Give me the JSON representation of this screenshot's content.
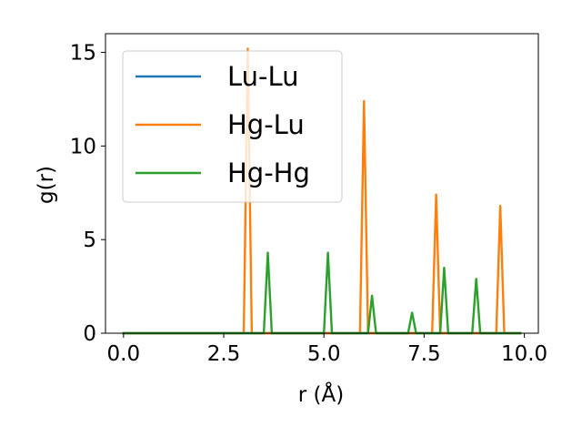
{
  "chart_data": {
    "type": "line",
    "xlabel": "r (Å)",
    "ylabel": "g(r)",
    "xlim": [
      -0.45,
      10.35
    ],
    "ylim": [
      0,
      16
    ],
    "xticks": [
      0.0,
      2.5,
      5.0,
      7.5,
      10.0
    ],
    "xtick_labels": [
      "0.0",
      "2.5",
      "5.0",
      "7.5",
      "10.0"
    ],
    "yticks": [
      0,
      5,
      10,
      15
    ],
    "ytick_labels": [
      "0",
      "5",
      "10",
      "15"
    ],
    "grid": false,
    "legend_position": "upper-left",
    "series": [
      {
        "name": "Lu-Lu",
        "color": "#1f77b4",
        "x": [
          0.0,
          9.9
        ],
        "y": [
          0,
          0
        ]
      },
      {
        "name": "Hg-Lu",
        "color": "#ff7f0e",
        "x": [
          0.0,
          3.0,
          3.1,
          3.2,
          5.9,
          6.0,
          6.1,
          7.7,
          7.8,
          7.9,
          9.3,
          9.4,
          9.5,
          9.9
        ],
        "y": [
          0,
          0,
          15.2,
          0,
          0,
          12.4,
          0,
          0,
          7.4,
          0,
          0,
          6.8,
          0,
          0
        ]
      },
      {
        "name": "Hg-Hg",
        "color": "#2ca02c",
        "x": [
          0.0,
          3.5,
          3.6,
          3.7,
          5.0,
          5.1,
          5.2,
          6.1,
          6.2,
          6.3,
          7.1,
          7.2,
          7.3,
          7.9,
          8.0,
          8.1,
          8.7,
          8.8,
          8.9,
          9.9
        ],
        "y": [
          0,
          0,
          4.3,
          0,
          0,
          4.3,
          0,
          0,
          2.0,
          0,
          0,
          1.1,
          0,
          0,
          3.5,
          0,
          0,
          2.9,
          0,
          0
        ]
      }
    ]
  }
}
